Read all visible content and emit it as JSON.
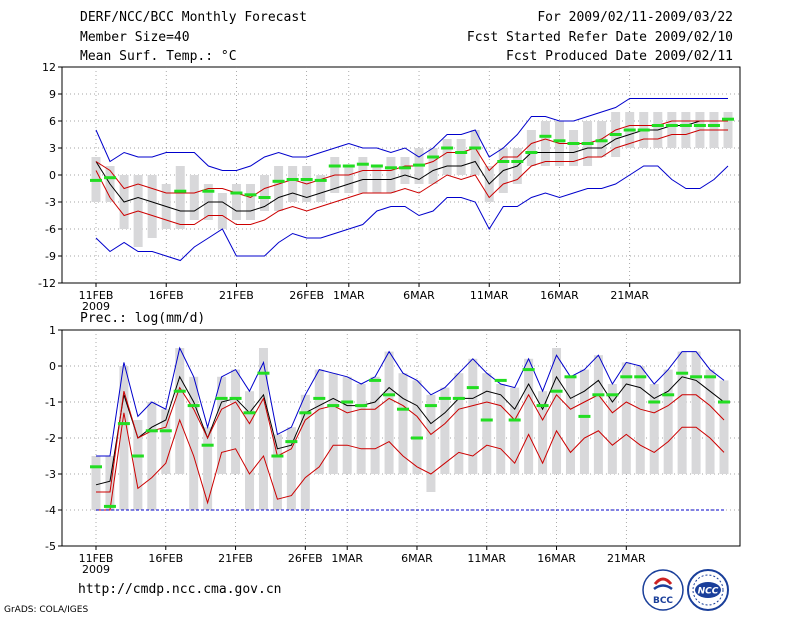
{
  "header": {
    "title": "DERF/NCC/BCC Monthly Forecast",
    "member_size": "Member Size=40",
    "variable": "Mean Surf. Temp.: °C",
    "period": "For 2009/02/11-2009/03/22",
    "fcst_started": "Fcst Started Refer Date 2009/02/10",
    "fcst_produced": "Fcst Produced Date 2009/02/11"
  },
  "footer": {
    "url": "http://cmdp.ncc.cma.gov.cn",
    "grads": "GrADS: COLA/IGES",
    "logo_bcc": "BCC",
    "logo_ncc": "NCC"
  },
  "colors": {
    "ensemble_mean": "#000000",
    "envelope": "#0000cc",
    "spread": "#cc0000",
    "member_bar": "#d8d8da",
    "observed_marker": "#22dd22"
  },
  "chart_data": [
    {
      "type": "line",
      "title": "Mean Surf. Temp.: °C",
      "x_tick_labels": [
        "11FEB",
        "16FEB",
        "21FEB",
        "26FEB",
        "1MAR",
        "6MAR",
        "11MAR",
        "16MAR",
        "21MAR"
      ],
      "x_tick_days": [
        0,
        5,
        10,
        15,
        18,
        23,
        28,
        33,
        38
      ],
      "year_label": "2009",
      "ylim": [
        -12,
        12
      ],
      "y_ticks": [
        -12,
        -9,
        -6,
        -3,
        0,
        3,
        6,
        9,
        12
      ],
      "series": [
        {
          "name": "ensemble mean",
          "color": "black",
          "values": [
            1.5,
            -1,
            -3,
            -2.5,
            -3,
            -3.5,
            -4,
            -4,
            -3,
            -3,
            -4,
            -4,
            -3.5,
            -2.5,
            -2,
            -2.5,
            -2,
            -1.5,
            -1,
            -0.5,
            -0.5,
            -0.5,
            0,
            -0.5,
            0.5,
            1,
            1,
            1.5,
            -1,
            0.5,
            1,
            2.5,
            2.5,
            2.5,
            2.5,
            3,
            3,
            4,
            4.5,
            5,
            5,
            5.5,
            5.5,
            6,
            6,
            6
          ]
        },
        {
          "name": "upper spread",
          "color": "red",
          "values": [
            1.5,
            0.5,
            -1.5,
            -1,
            -1.5,
            -2,
            -2,
            -2,
            -1.5,
            -1.5,
            -2,
            -2.5,
            -1.5,
            -1,
            -0.5,
            -1,
            -0.5,
            0,
            0,
            0.5,
            0.5,
            0.5,
            1,
            1,
            1.5,
            2.5,
            2.5,
            3,
            0.5,
            2,
            2,
            3.5,
            4,
            3.5,
            3.5,
            3.5,
            4,
            5,
            5.5,
            5.5,
            5.5,
            6,
            6,
            6,
            6,
            6
          ]
        },
        {
          "name": "lower spread",
          "color": "red",
          "values": [
            0.5,
            -2.5,
            -4.5,
            -4,
            -4.5,
            -5,
            -5.5,
            -5.5,
            -4.5,
            -4.5,
            -5.5,
            -5.5,
            -5,
            -4,
            -3.5,
            -4,
            -3.5,
            -3,
            -2.5,
            -2,
            -2,
            -2,
            -1.5,
            -2,
            -1,
            0,
            -0.5,
            0,
            -2.5,
            -1,
            -0.5,
            1,
            1.5,
            1.5,
            1.5,
            2,
            2,
            3,
            3.5,
            4,
            4,
            4.5,
            4.5,
            5,
            5,
            5
          ]
        },
        {
          "name": "ensemble max",
          "color": "blue",
          "values": [
            5,
            1.5,
            2.5,
            2,
            2,
            2.5,
            2.5,
            2.5,
            1,
            0.5,
            0.5,
            1,
            2,
            2.5,
            2,
            2,
            2.5,
            3,
            3.5,
            3,
            3,
            2.5,
            3,
            2,
            3,
            4.5,
            4.5,
            5,
            2,
            3,
            4.5,
            6.5,
            6.5,
            6,
            6,
            6.5,
            7,
            7.5,
            8.5,
            8.5,
            8.5,
            8.5,
            8.5,
            8.5,
            8.5,
            8.5
          ]
        },
        {
          "name": "ensemble min",
          "color": "blue",
          "values": [
            -7,
            -8.5,
            -7.5,
            -8.5,
            -8.5,
            -9,
            -9.5,
            -8,
            -7,
            -6,
            -9,
            -9,
            -9,
            -7.5,
            -6.5,
            -7,
            -7,
            -6.5,
            -6,
            -5.5,
            -4,
            -3.5,
            -3.5,
            -4.5,
            -4,
            -2.5,
            -2.5,
            -3,
            -6,
            -3.5,
            -3.5,
            -2.5,
            -2,
            -2.5,
            -2,
            -1.5,
            -1.5,
            -1,
            0,
            1,
            1,
            -0.5,
            -1.5,
            -1.5,
            -0.5,
            1
          ]
        }
      ],
      "member_bars": [
        [
          -3,
          2
        ],
        [
          -3,
          1
        ],
        [
          -6,
          0
        ],
        [
          -8,
          0
        ],
        [
          -7,
          0
        ],
        [
          -6,
          -1
        ],
        [
          -6,
          1
        ],
        [
          -5,
          0
        ],
        [
          -5,
          -1
        ],
        [
          -6,
          -2
        ],
        [
          -5,
          -1
        ],
        [
          -5,
          -1
        ],
        [
          -4,
          0
        ],
        [
          -4,
          1
        ],
        [
          -3,
          1
        ],
        [
          -3,
          1
        ],
        [
          -3,
          0
        ],
        [
          -2,
          2
        ],
        [
          -2,
          1
        ],
        [
          -2,
          2
        ],
        [
          -2,
          1
        ],
        [
          -2,
          2
        ],
        [
          -1,
          2
        ],
        [
          -1,
          3
        ],
        [
          -1,
          3
        ],
        [
          0,
          4
        ],
        [
          0,
          4
        ],
        [
          0,
          5
        ],
        [
          -3,
          1
        ],
        [
          -2,
          3
        ],
        [
          -1,
          3
        ],
        [
          1,
          5
        ],
        [
          1,
          6
        ],
        [
          1,
          6
        ],
        [
          1,
          5
        ],
        [
          1,
          6
        ],
        [
          2,
          6
        ],
        [
          2,
          7
        ],
        [
          3,
          7
        ],
        [
          3,
          7
        ],
        [
          3,
          7
        ],
        [
          3,
          7
        ],
        [
          3,
          7
        ],
        [
          3,
          7
        ],
        [
          3,
          7
        ],
        [
          3,
          7
        ]
      ],
      "observed": [
        -0.6,
        -0.3,
        null,
        null,
        null,
        null,
        -1.8,
        null,
        -1.8,
        null,
        -2,
        -2.2,
        -2.5,
        -0.7,
        -0.5,
        -0.5,
        -0.6,
        1,
        1,
        1.2,
        1,
        0.8,
        0.8,
        1.1,
        2,
        3,
        2.5,
        3,
        null,
        1.5,
        1.5,
        2.5,
        4.3,
        3.8,
        3.5,
        3.5,
        3.8,
        4.5,
        5,
        5,
        5.5,
        5.5,
        5.5,
        5.5,
        5.5,
        6.2
      ]
    },
    {
      "type": "line",
      "title": "Prec.: log(mm/d)",
      "x_tick_labels": [
        "11FEB",
        "16FEB",
        "21FEB",
        "26FEB",
        "1MAR",
        "6MAR",
        "11MAR",
        "16MAR",
        "21MAR"
      ],
      "x_tick_days": [
        0,
        5,
        10,
        15,
        18,
        23,
        28,
        33,
        38
      ],
      "year_label": "2009",
      "ylim": [
        -5,
        1
      ],
      "y_ticks": [
        -5,
        -4,
        -3,
        -2,
        -1,
        0,
        1
      ],
      "series": [
        {
          "name": "ensemble mean",
          "color": "black",
          "values": [
            -3.3,
            -3.2,
            -0.8,
            -2,
            -1.7,
            -1.5,
            -0.3,
            -1,
            -2,
            -1,
            -0.9,
            -1.3,
            -0.8,
            -2.3,
            -2.2,
            -1.3,
            -1.1,
            -0.9,
            -1.1,
            -1.1,
            -1,
            -0.6,
            -0.9,
            -1.1,
            -1.6,
            -1.3,
            -0.9,
            -0.9,
            -0.7,
            -0.8,
            -1.2,
            -0.5,
            -1.2,
            -0.3,
            -0.9,
            -0.7,
            -0.4,
            -1,
            -0.5,
            -0.6,
            -0.9,
            -0.7,
            -0.3,
            -0.4,
            -0.7,
            -1
          ]
        },
        {
          "name": "upper spread",
          "color": "red",
          "values": [
            -3.5,
            -3.5,
            -0.7,
            -2,
            -1.8,
            -1.7,
            -0.6,
            -1.2,
            -2,
            -1.2,
            -1,
            -1.6,
            -0.9,
            -2.5,
            -2.3,
            -1.5,
            -1.2,
            -1.1,
            -1.3,
            -1.2,
            -1.2,
            -0.9,
            -1.1,
            -1.4,
            -1.9,
            -1.6,
            -1.2,
            -1.1,
            -1,
            -1.1,
            -1.5,
            -0.8,
            -1.5,
            -0.8,
            -1.2,
            -1,
            -0.8,
            -1.3,
            -1,
            -1.2,
            -1.3,
            -1.1,
            -0.8,
            -0.8,
            -1.1,
            -1.5
          ]
        },
        {
          "name": "lower spread",
          "color": "red",
          "values": [
            -4,
            -4,
            -1.3,
            -3.4,
            -3.1,
            -2.7,
            -1.5,
            -2.5,
            -3.8,
            -2.4,
            -2.3,
            -3,
            -2.5,
            -3.7,
            -3.6,
            -3.1,
            -2.8,
            -2.2,
            -2.2,
            -2.3,
            -2.3,
            -2.1,
            -2.5,
            -2.8,
            -3,
            -2.7,
            -2.4,
            -2.5,
            -2.2,
            -2.3,
            -2.7,
            -1.9,
            -2.7,
            -1.8,
            -2.4,
            -2,
            -1.8,
            -2.2,
            -1.9,
            -2.2,
            -2.4,
            -2.1,
            -1.7,
            -1.7,
            -2,
            -2.4
          ]
        },
        {
          "name": "ensemble max",
          "color": "blue",
          "values": [
            -2.5,
            -2.5,
            0.1,
            -1.4,
            -1,
            -1.2,
            0.5,
            -0.3,
            -1.7,
            -0.3,
            -0.1,
            -0.7,
            0.1,
            -1.9,
            -1.7,
            -0.8,
            -0.1,
            -0.2,
            -0.3,
            -0.5,
            -0.3,
            0.4,
            -0.2,
            -0.4,
            -0.8,
            -0.6,
            -0.2,
            0.2,
            -0.2,
            -0.5,
            -0.6,
            0.2,
            -0.7,
            0.3,
            -0.3,
            -0.1,
            0.3,
            -0.5,
            0.1,
            0,
            -0.5,
            -0.1,
            0.4,
            0.4,
            -0.1,
            -0.4
          ]
        },
        {
          "name": "ensemble min",
          "color": "blue",
          "values": [
            -4,
            -4,
            -4,
            -4,
            -4,
            -4,
            -4,
            -4,
            -4,
            -4,
            -4,
            -4,
            -4,
            -4,
            -4,
            -4,
            -4,
            -4,
            -4,
            -4,
            -4,
            -4,
            -4,
            -4,
            -4,
            -4,
            -4,
            -4,
            -4,
            -4,
            -4,
            -4,
            -4,
            -4,
            -4,
            -4,
            -4,
            -4,
            -4,
            -4,
            -4,
            -4,
            -4,
            -4,
            -4,
            -4
          ]
        }
      ],
      "member_bars": [
        [
          -4,
          -2.5
        ],
        [
          -4,
          -2.5
        ],
        [
          -4,
          0
        ],
        [
          -4,
          -1.5
        ],
        [
          -4,
          -1
        ],
        [
          -3,
          -1.2
        ],
        [
          -3,
          0.5
        ],
        [
          -4,
          -0.3
        ],
        [
          -4,
          -1.7
        ],
        [
          -3,
          -0.3
        ],
        [
          -3,
          -0.1
        ],
        [
          -4,
          -0.7
        ],
        [
          -4,
          0.5
        ],
        [
          -4,
          -1.9
        ],
        [
          -4,
          -1.7
        ],
        [
          -4,
          -0.8
        ],
        [
          -3,
          -0.1
        ],
        [
          -3,
          -0.2
        ],
        [
          -3,
          -0.3
        ],
        [
          -3,
          -0.5
        ],
        [
          -3,
          -0.3
        ],
        [
          -3,
          0.4
        ],
        [
          -3,
          -0.2
        ],
        [
          -3,
          -0.4
        ],
        [
          -3.5,
          -0.8
        ],
        [
          -3,
          -0.6
        ],
        [
          -3,
          -0.2
        ],
        [
          -3,
          0.2
        ],
        [
          -3,
          -0.2
        ],
        [
          -3,
          -0.5
        ],
        [
          -3,
          -0.6
        ],
        [
          -3,
          0.2
        ],
        [
          -3,
          -0.7
        ],
        [
          -3,
          0.5
        ],
        [
          -3,
          -0.3
        ],
        [
          -3,
          -0.1
        ],
        [
          -3,
          0.3
        ],
        [
          -3,
          -0.5
        ],
        [
          -3,
          0.1
        ],
        [
          -3,
          0
        ],
        [
          -3,
          -0.5
        ],
        [
          -3,
          -0.1
        ],
        [
          -3,
          0.4
        ],
        [
          -3,
          0.4
        ],
        [
          -3,
          -0.1
        ],
        [
          -3,
          -0.4
        ]
      ],
      "observed": [
        -2.8,
        -3.9,
        -1.6,
        -2.5,
        -1.8,
        -1.8,
        -0.7,
        -1.1,
        -2.2,
        -0.9,
        -0.9,
        -1.3,
        -0.2,
        -2.5,
        -2.1,
        -1.3,
        -0.9,
        -1.1,
        -1,
        -1.1,
        -0.4,
        -0.8,
        -1.2,
        -2,
        -1.1,
        -0.9,
        -0.9,
        -0.6,
        -1.5,
        -0.4,
        -1.5,
        -0.1,
        -1.1,
        -0.7,
        -0.3,
        -1.4,
        -0.8,
        -0.8,
        -0.3,
        -0.3,
        -1,
        -0.8,
        -0.2,
        -0.3,
        -0.3,
        -1
      ]
    }
  ]
}
